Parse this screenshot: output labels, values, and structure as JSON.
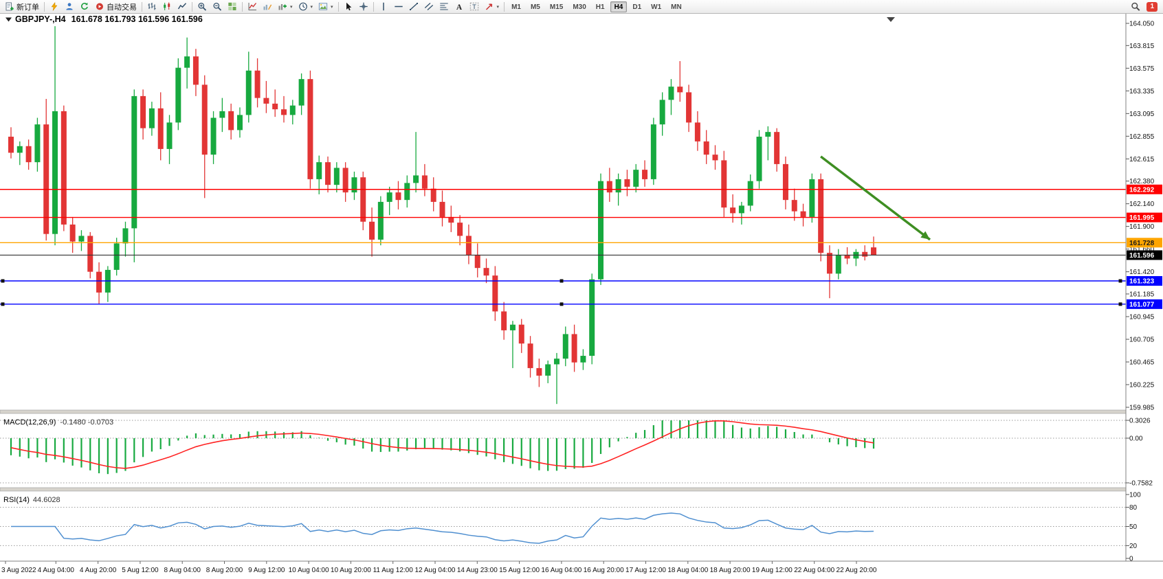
{
  "toolbar": {
    "items": [
      {
        "name": "new-order-button",
        "icon": "new-order",
        "label": "新订单"
      },
      {
        "sep": true
      },
      {
        "name": "metaeditor-button",
        "icon": "bolt"
      },
      {
        "name": "hosting-button",
        "icon": "person"
      },
      {
        "name": "refresh-button",
        "icon": "refresh"
      },
      {
        "name": "auto-trading-button",
        "icon": "autotrade",
        "label": "自动交易"
      },
      {
        "sep": true
      },
      {
        "name": "bar-chart-button",
        "icon": "bars"
      },
      {
        "name": "candlestick-chart-button",
        "icon": "candles"
      },
      {
        "name": "line-chart-button",
        "icon": "linechart"
      },
      {
        "sep": true
      },
      {
        "name": "zoom-in-button",
        "icon": "zoom-in"
      },
      {
        "name": "zoom-out-button",
        "icon": "zoom-out"
      },
      {
        "name": "tile-windows-button",
        "icon": "tile"
      },
      {
        "sep": true
      },
      {
        "name": "indicators-button",
        "icon": "chart-up"
      },
      {
        "name": "indicator-edit-button",
        "icon": "chart-pencil"
      },
      {
        "name": "new-chart-button",
        "icon": "chart-plus",
        "caret": true
      },
      {
        "name": "periods-button",
        "icon": "clock",
        "caret": true
      },
      {
        "name": "templates-button",
        "icon": "template",
        "caret": true
      },
      {
        "sep": true
      },
      {
        "name": "cursor-button",
        "icon": "cursor"
      },
      {
        "name": "crosshair-button",
        "icon": "crosshair"
      },
      {
        "sep": true
      },
      {
        "name": "vertical-line-button",
        "icon": "vline"
      },
      {
        "name": "horizontal-line-button",
        "icon": "hline"
      },
      {
        "name": "trendline-button",
        "icon": "trendline"
      },
      {
        "name": "channel-button",
        "icon": "channel"
      },
      {
        "name": "fibonacci-button",
        "icon": "fibo"
      },
      {
        "name": "text-button",
        "icon": "text-a"
      },
      {
        "name": "label-button",
        "icon": "text-t"
      },
      {
        "name": "arrows-button",
        "icon": "arrows",
        "caret": true
      },
      {
        "sep": true
      }
    ],
    "timeframes": [
      "M1",
      "M5",
      "M15",
      "M30",
      "H1",
      "H4",
      "D1",
      "W1",
      "MN"
    ],
    "active_timeframe": "H4",
    "notification_count": "1"
  },
  "chart_data": {
    "type": "candlestick",
    "title": "GBPJPY-,H4",
    "ohlc_label": "161.678 161.793 161.596 161.596",
    "ohlc": {
      "open": 161.678,
      "high": 161.793,
      "low": 161.596,
      "close": 161.596
    },
    "y_axis": {
      "max": 164.05,
      "min": 159.985,
      "ticks": [
        "164.050",
        "163.815",
        "163.575",
        "163.335",
        "163.095",
        "162.855",
        "162.615",
        "162.380",
        "162.140",
        "161.900",
        "161.660",
        "161.420",
        "161.185",
        "160.945",
        "160.705",
        "160.465",
        "160.225",
        "159.985"
      ]
    },
    "x_labels": [
      "3 Aug 2022",
      "4 Aug 04:00",
      "4 Aug 20:00",
      "5 Aug 12:00",
      "8 Aug 04:00",
      "8 Aug 20:00",
      "9 Aug 12:00",
      "10 Aug 04:00",
      "10 Aug 20:00",
      "11 Aug 12:00",
      "12 Aug 04:00",
      "14 Aug 23:00",
      "15 Aug 12:00",
      "16 Aug 04:00",
      "16 Aug 20:00",
      "17 Aug 12:00",
      "18 Aug 04:00",
      "18 Aug 20:00",
      "19 Aug 12:00",
      "22 Aug 04:00",
      "22 Aug 20:00"
    ],
    "colors": {
      "up": "#17a93f",
      "down": "#e23535",
      "bid_line": "#333333"
    },
    "candles": [
      [
        162.85,
        162.95,
        162.62,
        162.68
      ],
      [
        162.68,
        162.8,
        162.55,
        162.75
      ],
      [
        162.75,
        162.82,
        162.5,
        162.58
      ],
      [
        162.58,
        163.05,
        162.48,
        162.98
      ],
      [
        162.98,
        163.25,
        161.75,
        161.82
      ],
      [
        161.82,
        164.02,
        161.7,
        163.12
      ],
      [
        163.12,
        163.18,
        161.85,
        161.92
      ],
      [
        161.92,
        162.0,
        161.62,
        161.74
      ],
      [
        161.74,
        161.86,
        161.64,
        161.8
      ],
      [
        161.8,
        161.84,
        161.35,
        161.42
      ],
      [
        161.42,
        161.52,
        161.08,
        161.2
      ],
      [
        161.2,
        161.48,
        161.1,
        161.44
      ],
      [
        161.44,
        161.78,
        161.38,
        161.72
      ],
      [
        161.72,
        161.95,
        161.58,
        161.88
      ],
      [
        161.88,
        163.35,
        161.52,
        163.28
      ],
      [
        163.28,
        163.35,
        162.82,
        162.94
      ],
      [
        162.94,
        163.22,
        162.86,
        163.15
      ],
      [
        163.15,
        163.32,
        162.6,
        162.72
      ],
      [
        162.72,
        163.08,
        162.56,
        163.0
      ],
      [
        163.0,
        163.68,
        162.92,
        163.58
      ],
      [
        163.58,
        163.9,
        163.36,
        163.7
      ],
      [
        163.7,
        163.78,
        163.28,
        163.4
      ],
      [
        163.4,
        163.5,
        162.2,
        162.66
      ],
      [
        162.66,
        163.12,
        162.56,
        163.05
      ],
      [
        163.05,
        163.26,
        162.9,
        163.12
      ],
      [
        163.12,
        163.2,
        162.82,
        162.92
      ],
      [
        162.92,
        163.16,
        162.84,
        163.08
      ],
      [
        163.08,
        163.75,
        163.0,
        163.55
      ],
      [
        163.55,
        163.68,
        163.16,
        163.26
      ],
      [
        163.26,
        163.44,
        163.1,
        163.2
      ],
      [
        163.2,
        163.35,
        163.06,
        163.14
      ],
      [
        163.14,
        163.28,
        163.0,
        163.08
      ],
      [
        163.08,
        163.24,
        162.98,
        163.18
      ],
      [
        163.18,
        163.52,
        163.08,
        163.46
      ],
      [
        163.46,
        163.55,
        162.3,
        162.4
      ],
      [
        162.4,
        162.65,
        162.24,
        162.58
      ],
      [
        162.58,
        162.64,
        162.26,
        162.34
      ],
      [
        162.34,
        162.58,
        162.26,
        162.52
      ],
      [
        162.52,
        162.58,
        162.16,
        162.26
      ],
      [
        162.26,
        162.48,
        162.18,
        162.42
      ],
      [
        162.42,
        162.48,
        161.86,
        161.95
      ],
      [
        161.95,
        162.1,
        161.58,
        161.76
      ],
      [
        161.76,
        162.22,
        161.7,
        162.16
      ],
      [
        162.16,
        162.32,
        162.02,
        162.26
      ],
      [
        162.26,
        162.38,
        162.08,
        162.18
      ],
      [
        162.18,
        162.44,
        162.1,
        162.36
      ],
      [
        162.36,
        162.9,
        162.26,
        162.44
      ],
      [
        162.44,
        162.56,
        162.22,
        162.3
      ],
      [
        162.3,
        162.42,
        162.06,
        162.16
      ],
      [
        162.16,
        162.28,
        161.9,
        162.0
      ],
      [
        162.0,
        162.12,
        161.84,
        161.94
      ],
      [
        161.94,
        162.02,
        161.7,
        161.8
      ],
      [
        161.8,
        161.92,
        161.5,
        161.6
      ],
      [
        161.6,
        161.72,
        161.36,
        161.46
      ],
      [
        161.46,
        161.56,
        161.3,
        161.38
      ],
      [
        161.38,
        161.48,
        160.9,
        161.0
      ],
      [
        161.0,
        161.1,
        160.7,
        160.8
      ],
      [
        160.8,
        160.9,
        160.4,
        160.86
      ],
      [
        160.86,
        160.92,
        160.56,
        160.66
      ],
      [
        160.66,
        160.74,
        160.3,
        160.4
      ],
      [
        160.4,
        160.5,
        160.2,
        160.32
      ],
      [
        160.32,
        160.48,
        160.24,
        160.44
      ],
      [
        160.44,
        160.56,
        160.02,
        160.5
      ],
      [
        160.5,
        160.84,
        160.42,
        160.76
      ],
      [
        160.76,
        160.86,
        160.36,
        160.46
      ],
      [
        160.46,
        160.6,
        160.38,
        160.53
      ],
      [
        160.53,
        161.4,
        160.44,
        161.34
      ],
      [
        161.34,
        162.46,
        161.28,
        162.38
      ],
      [
        162.38,
        162.52,
        162.16,
        162.26
      ],
      [
        162.26,
        162.46,
        162.12,
        162.4
      ],
      [
        162.4,
        162.5,
        162.22,
        162.32
      ],
      [
        162.32,
        162.56,
        162.26,
        162.5
      ],
      [
        162.5,
        162.6,
        162.32,
        162.4
      ],
      [
        162.4,
        163.05,
        162.34,
        162.98
      ],
      [
        162.98,
        163.32,
        162.86,
        163.24
      ],
      [
        163.24,
        163.46,
        163.08,
        163.38
      ],
      [
        163.38,
        163.65,
        163.22,
        163.32
      ],
      [
        163.32,
        163.4,
        162.9,
        163.0
      ],
      [
        163.0,
        163.12,
        162.7,
        162.8
      ],
      [
        162.8,
        162.92,
        162.56,
        162.66
      ],
      [
        162.66,
        162.76,
        162.5,
        162.6
      ],
      [
        162.6,
        162.7,
        162.0,
        162.1
      ],
      [
        162.1,
        162.24,
        161.94,
        162.04
      ],
      [
        162.04,
        162.16,
        161.92,
        162.12
      ],
      [
        162.12,
        162.45,
        162.06,
        162.38
      ],
      [
        162.38,
        162.92,
        162.3,
        162.85
      ],
      [
        162.85,
        162.96,
        162.6,
        162.9
      ],
      [
        162.9,
        162.94,
        162.48,
        162.56
      ],
      [
        162.56,
        162.64,
        162.08,
        162.18
      ],
      [
        162.18,
        162.3,
        161.96,
        162.06
      ],
      [
        162.06,
        162.14,
        161.9,
        162.0
      ],
      [
        162.0,
        162.46,
        161.94,
        162.4
      ],
      [
        162.4,
        162.46,
        161.53,
        161.62
      ],
      [
        161.62,
        161.7,
        161.14,
        161.4
      ],
      [
        161.4,
        161.66,
        161.34,
        161.6
      ],
      [
        161.6,
        161.68,
        161.5,
        161.56
      ],
      [
        161.56,
        161.66,
        161.48,
        161.63
      ],
      [
        161.63,
        161.7,
        161.54,
        161.58
      ],
      [
        161.678,
        161.793,
        161.596,
        161.596
      ]
    ],
    "hlines": [
      {
        "price": 162.292,
        "label": "162.292",
        "color": "#ff0000",
        "badge_bg": "#ff0000",
        "badge_fg": "#ffffff",
        "selected": false
      },
      {
        "price": 161.995,
        "label": "161.995",
        "color": "#ff0000",
        "badge_bg": "#ff0000",
        "badge_fg": "#ffffff",
        "selected": false
      },
      {
        "price": 161.728,
        "label": "161.728",
        "color": "#ffa500",
        "badge_bg": "#ffa500",
        "badge_fg": "#1a1a1a",
        "selected": false
      },
      {
        "price": 161.323,
        "label": "161.323",
        "color": "#0000ff",
        "badge_bg": "#0000ff",
        "badge_fg": "#ffffff",
        "selected": true
      },
      {
        "price": 161.077,
        "label": "161.077",
        "color": "#0000ff",
        "badge_bg": "#0000ff",
        "badge_fg": "#ffffff",
        "selected": true
      }
    ],
    "bid_line": {
      "price": 161.596,
      "label": "161.596",
      "color": "#333333",
      "badge_bg": "#000000",
      "badge_fg": "#ffffff"
    },
    "annotation_arrow": {
      "x1_frac": 0.729,
      "price1": 162.64,
      "x2_frac": 0.826,
      "price2": 161.76,
      "color": "#3e8e22"
    },
    "indicators": {
      "macd": {
        "label": "MACD(12,26,9)",
        "values": "-0.1480 -0.0703",
        "fast": 12,
        "slow": 26,
        "signal": 9,
        "axis_ticks": [
          "0.3026",
          "0.00",
          "-0.7582"
        ],
        "axis_max": 0.3026,
        "axis_min": -0.7582,
        "histogram_color": "#17a93f",
        "signal_color": "#ff2222"
      },
      "rsi": {
        "label": "RSI(14)",
        "value": "44.6028",
        "period": 14,
        "levels": [
          80,
          50,
          20
        ],
        "axis_ticks": [
          "100",
          "80",
          "50",
          "20",
          "0"
        ],
        "line_color": "#4f8fd0"
      }
    }
  }
}
